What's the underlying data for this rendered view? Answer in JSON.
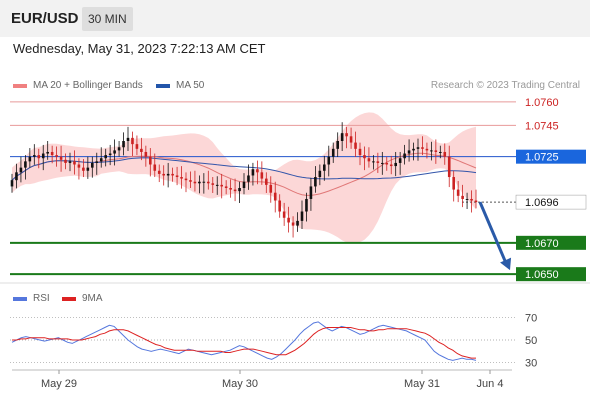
{
  "header": {
    "pair": "EUR/USD",
    "timeframe": "30 MIN"
  },
  "date_text": "Wednesday, May 31, 2023 7:22:13 AM CET",
  "legend": [
    {
      "label": "MA 20 + Bollinger Bands",
      "color": "#f08080"
    },
    {
      "label": "MA 50",
      "color": "#2255aa"
    }
  ],
  "credit": "Research © 2023 Trading Central",
  "rsi_legend": [
    {
      "label": "RSI",
      "color": "#5577dd"
    },
    {
      "label": "9MA",
      "color": "#dd2222"
    }
  ],
  "chart_data": [
    {
      "type": "candlestick",
      "ylim": [
        1.0645,
        1.0765
      ],
      "levels": [
        {
          "value": 1.076,
          "label": "1.0760",
          "role": "resistance"
        },
        {
          "value": 1.0745,
          "label": "1.0745",
          "role": "resistance"
        },
        {
          "value": 1.0725,
          "label": "1.0725",
          "role": "pivot"
        },
        {
          "value": 1.0696,
          "label": "1.0696",
          "role": "last"
        },
        {
          "value": 1.067,
          "label": "1.0670",
          "role": "support"
        },
        {
          "value": 1.065,
          "label": "1.0650",
          "role": "support"
        }
      ],
      "x_ticks": [
        "May 29",
        "May 30",
        "May 31",
        "Jun 4"
      ],
      "close_series": [
        1.071,
        1.0715,
        1.0718,
        1.0722,
        1.0725,
        1.0726,
        1.0724,
        1.0727,
        1.0728,
        1.0726,
        1.0725,
        1.0723,
        1.0721,
        1.0722,
        1.072,
        1.0718,
        1.0716,
        1.0718,
        1.0721,
        1.0722,
        1.0724,
        1.0726,
        1.0727,
        1.0729,
        1.0731,
        1.0735,
        1.0737,
        1.0733,
        1.073,
        1.0728,
        1.0725,
        1.072,
        1.0716,
        1.0714,
        1.0713,
        1.0714,
        1.0713,
        1.0712,
        1.0711,
        1.071,
        1.0709,
        1.0708,
        1.0709,
        1.0709,
        1.0708,
        1.0707,
        1.0707,
        1.0706,
        1.0705,
        1.0704,
        1.0703,
        1.0705,
        1.0709,
        1.0713,
        1.0717,
        1.0715,
        1.0711,
        1.0707,
        1.0702,
        1.0697,
        1.069,
        1.0686,
        1.0683,
        1.0681,
        1.0684,
        1.069,
        1.0698,
        1.0706,
        1.0712,
        1.0716,
        1.072,
        1.0725,
        1.073,
        1.0735,
        1.074,
        1.0738,
        1.0734,
        1.073,
        1.0726,
        1.0724,
        1.0722,
        1.0722,
        1.0721,
        1.0721,
        1.072,
        1.0719,
        1.0721,
        1.0724,
        1.0727,
        1.0729,
        1.073,
        1.0731,
        1.073,
        1.0729,
        1.0729,
        1.0728,
        1.0728,
        1.0725,
        1.0712,
        1.0704,
        1.07,
        1.0698,
        1.0698,
        1.0697,
        1.0696
      ],
      "forecast": {
        "from": 1.0696,
        "to": 1.065
      }
    },
    {
      "type": "line",
      "title": "RSI",
      "ylim": [
        20,
        80
      ],
      "y_ticks": [
        70,
        50,
        30
      ],
      "series": [
        {
          "name": "RSI",
          "values": [
            48,
            50,
            52,
            53,
            52,
            51,
            50,
            49,
            50,
            51,
            52,
            50,
            48,
            47,
            49,
            51,
            53,
            55,
            57,
            59,
            61,
            63,
            62,
            58,
            54,
            50,
            47,
            44,
            42,
            41,
            40,
            41,
            42,
            41,
            40,
            39,
            38,
            40,
            42,
            41,
            40,
            39,
            38,
            37,
            38,
            39,
            40,
            41,
            43,
            45,
            44,
            42,
            40,
            38,
            36,
            34,
            33,
            35,
            38,
            42,
            46,
            50,
            55,
            59,
            62,
            65,
            66,
            63,
            60,
            58,
            60,
            62,
            61,
            59,
            57,
            55,
            56,
            58,
            60,
            62,
            63,
            62,
            61,
            60,
            59,
            58,
            56,
            54,
            52,
            50,
            45,
            40,
            37,
            35,
            33,
            32,
            33,
            34,
            33,
            33,
            32
          ]
        },
        {
          "name": "9MA",
          "values": [
            50,
            50,
            51,
            51,
            52,
            52,
            52,
            52,
            51,
            51,
            51,
            51,
            51,
            50,
            50,
            50,
            51,
            52,
            53,
            55,
            56,
            58,
            59,
            59,
            59,
            58,
            56,
            54,
            52,
            50,
            48,
            46,
            45,
            43,
            42,
            41,
            41,
            41,
            41,
            41,
            40,
            40,
            40,
            40,
            40,
            40,
            39,
            39,
            40,
            41,
            42,
            42,
            42,
            41,
            40,
            39,
            38,
            37,
            37,
            37,
            39,
            41,
            44,
            47,
            51,
            55,
            58,
            60,
            61,
            61,
            61,
            61,
            61,
            61,
            60,
            59,
            59,
            58,
            58,
            59,
            59,
            60,
            60,
            60,
            60,
            60,
            59,
            58,
            57,
            56,
            54,
            51,
            48,
            46,
            43,
            41,
            38,
            36,
            35,
            34,
            34
          ]
        }
      ]
    }
  ]
}
